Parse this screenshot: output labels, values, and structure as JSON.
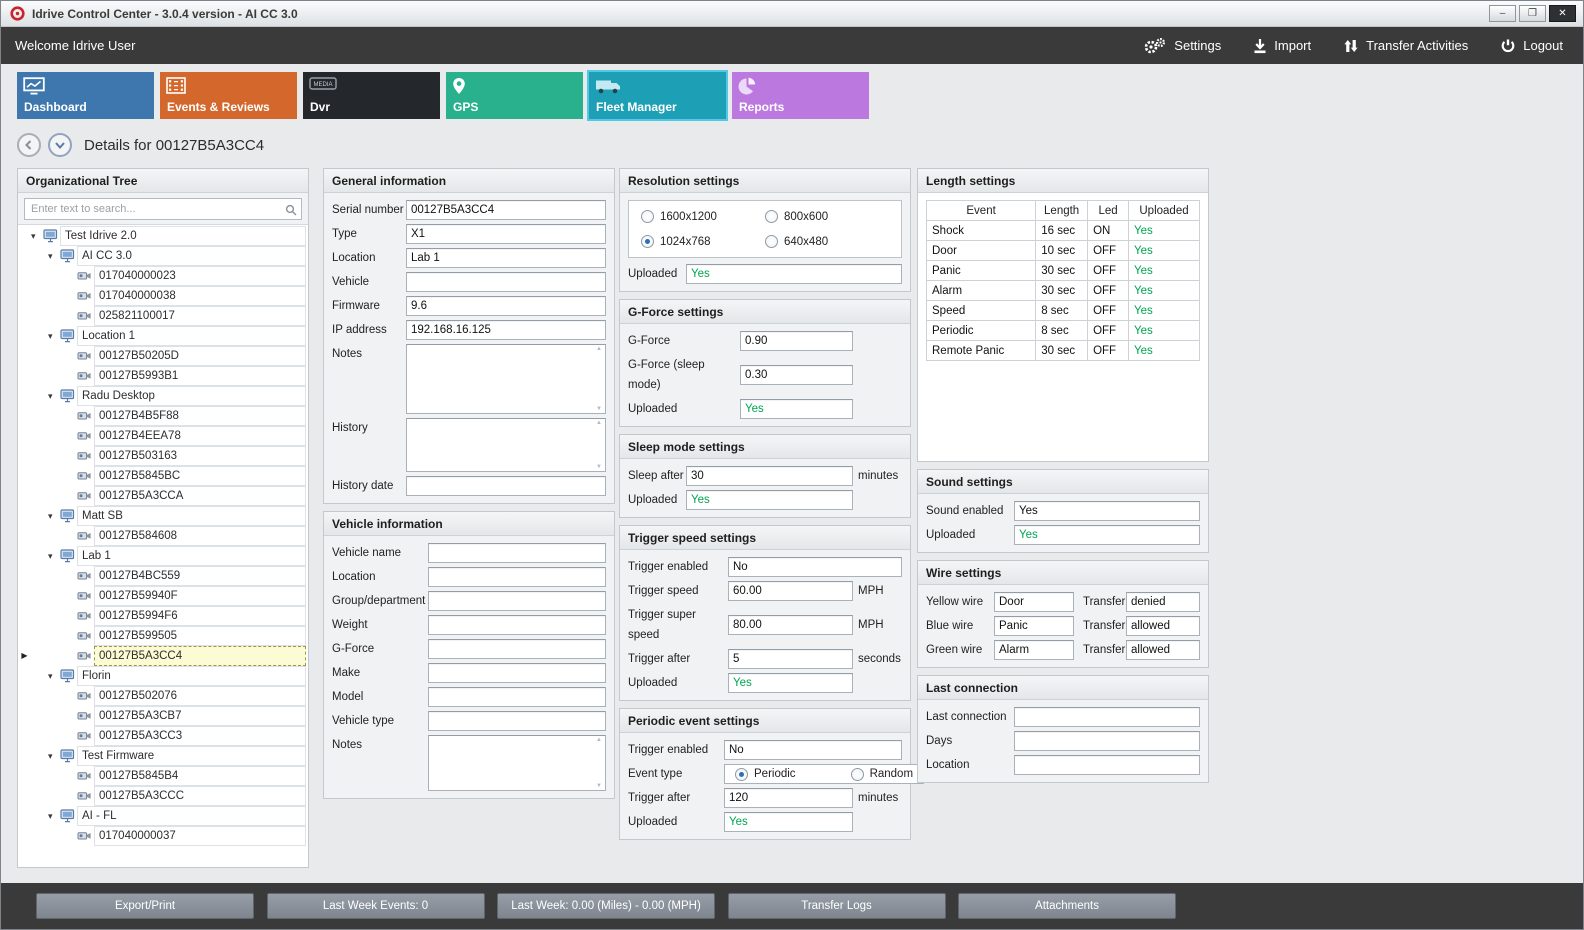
{
  "window": {
    "title": "Idrive Control Center - 3.0.4 version - AI CC 3.0",
    "controls": {
      "minimize": "–",
      "maximize": "❐",
      "close": "✕"
    }
  },
  "topbar": {
    "welcome": "Welcome Idrive User",
    "actions": [
      {
        "id": "settings",
        "label": "Settings",
        "icon": "gears-icon"
      },
      {
        "id": "import",
        "label": "Import",
        "icon": "import-icon"
      },
      {
        "id": "transfer-activities",
        "label": "Transfer Activities",
        "icon": "transfer-arrows-icon"
      },
      {
        "id": "logout",
        "label": "Logout",
        "icon": "power-icon"
      }
    ]
  },
  "tabs": [
    {
      "id": "dashboard",
      "label": "Dashboard",
      "color": "#3d77ae",
      "icon": "chart-monitor-icon",
      "selected": false
    },
    {
      "id": "events-reviews",
      "label": "Events & Reviews",
      "color": "#d4682c",
      "icon": "film-icon",
      "selected": false
    },
    {
      "id": "dvr",
      "label": "Dvr",
      "color": "#24272c",
      "icon": "media-box-icon",
      "selected": false
    },
    {
      "id": "gps",
      "label": "GPS",
      "color": "#29b08c",
      "icon": "location-pin-icon",
      "selected": false
    },
    {
      "id": "fleet-manager",
      "label": "Fleet Manager",
      "color": "#1d9fb5",
      "icon": "truck-icon",
      "selected": true
    },
    {
      "id": "reports",
      "label": "Reports",
      "color": "#bb79e0",
      "icon": "pie-chart-icon",
      "selected": false
    }
  ],
  "details": {
    "title": "Details for 00127B5A3CC4"
  },
  "tree": {
    "title": "Organizational Tree",
    "search_placeholder": "Enter text to search...",
    "nodes": [
      {
        "label": "Test Idrive 2.0",
        "level": 0,
        "type": "group",
        "expanded": true
      },
      {
        "label": "AI CC 3.0",
        "level": 1,
        "type": "group",
        "expanded": true
      },
      {
        "label": "017040000023",
        "level": 2,
        "type": "device"
      },
      {
        "label": "017040000038",
        "level": 2,
        "type": "device"
      },
      {
        "label": "025821100017",
        "level": 2,
        "type": "device"
      },
      {
        "label": "Location 1",
        "level": 1,
        "type": "group",
        "expanded": true
      },
      {
        "label": "00127B50205D",
        "level": 2,
        "type": "device"
      },
      {
        "label": "00127B5993B1",
        "level": 2,
        "type": "device"
      },
      {
        "label": "Radu Desktop",
        "level": 1,
        "type": "group",
        "expanded": true
      },
      {
        "label": "00127B4B5F88",
        "level": 2,
        "type": "device"
      },
      {
        "label": "00127B4EEA78",
        "level": 2,
        "type": "device"
      },
      {
        "label": "00127B503163",
        "level": 2,
        "type": "device"
      },
      {
        "label": "00127B5845BC",
        "level": 2,
        "type": "device"
      },
      {
        "label": "00127B5A3CCA",
        "level": 2,
        "type": "device"
      },
      {
        "label": "Matt SB",
        "level": 1,
        "type": "group",
        "expanded": true
      },
      {
        "label": "00127B584608",
        "level": 2,
        "type": "device"
      },
      {
        "label": "Lab 1",
        "level": 1,
        "type": "group",
        "expanded": true
      },
      {
        "label": "00127B4BC559",
        "level": 2,
        "type": "device"
      },
      {
        "label": "00127B59940F",
        "level": 2,
        "type": "device"
      },
      {
        "label": "00127B5994F6",
        "level": 2,
        "type": "device"
      },
      {
        "label": "00127B599505",
        "level": 2,
        "type": "device"
      },
      {
        "label": "00127B5A3CC4",
        "level": 2,
        "type": "device",
        "selected": true
      },
      {
        "label": "Florin",
        "level": 1,
        "type": "group",
        "expanded": true
      },
      {
        "label": "00127B502076",
        "level": 2,
        "type": "device"
      },
      {
        "label": "00127B5A3CB7",
        "level": 2,
        "type": "device"
      },
      {
        "label": "00127B5A3CC3",
        "level": 2,
        "type": "device"
      },
      {
        "label": "Test Firmware",
        "level": 1,
        "type": "group",
        "expanded": true
      },
      {
        "label": "00127B5845B4",
        "level": 2,
        "type": "device"
      },
      {
        "label": "00127B5A3CCC",
        "level": 2,
        "type": "device"
      },
      {
        "label": "AI - FL",
        "level": 1,
        "type": "group",
        "expanded": true
      },
      {
        "label": "017040000037",
        "level": 2,
        "type": "device"
      }
    ]
  },
  "general_info": {
    "title": "General information",
    "fields": [
      {
        "label": "Serial number",
        "value": "00127B5A3CC4",
        "kind": "input"
      },
      {
        "label": "Type",
        "value": "X1",
        "kind": "input"
      },
      {
        "label": "Location",
        "value": "Lab 1",
        "kind": "input"
      },
      {
        "label": "Vehicle",
        "value": "",
        "kind": "input"
      },
      {
        "label": "Firmware",
        "value": "9.6",
        "kind": "input"
      },
      {
        "label": "IP address",
        "value": "192.168.16.125",
        "kind": "input"
      },
      {
        "label": "Notes",
        "value": "",
        "kind": "textarea"
      },
      {
        "label": "History",
        "value": "",
        "kind": "textarea"
      },
      {
        "label": "History date",
        "value": "",
        "kind": "input"
      }
    ]
  },
  "vehicle_info": {
    "title": "Vehicle information",
    "fields": [
      {
        "label": "Vehicle name",
        "value": "",
        "kind": "input"
      },
      {
        "label": "Location",
        "value": "",
        "kind": "input"
      },
      {
        "label": "Group/department",
        "value": "",
        "kind": "input"
      },
      {
        "label": "Weight",
        "value": "",
        "kind": "input"
      },
      {
        "label": "G-Force",
        "value": "",
        "kind": "input"
      },
      {
        "label": "Make",
        "value": "",
        "kind": "input"
      },
      {
        "label": "Model",
        "value": "",
        "kind": "input"
      },
      {
        "label": "Vehicle type",
        "value": "",
        "kind": "input"
      },
      {
        "label": "Notes",
        "value": "",
        "kind": "textarea"
      }
    ]
  },
  "resolution_settings": {
    "title": "Resolution settings",
    "options": [
      {
        "label": "1600x1200",
        "selected": false
      },
      {
        "label": "800x600",
        "selected": false
      },
      {
        "label": "1024x768",
        "selected": true
      },
      {
        "label": "640x480",
        "selected": false
      }
    ],
    "uploaded_label": "Uploaded",
    "uploaded_value": "Yes"
  },
  "gforce_settings": {
    "title": "G-Force settings",
    "fields": [
      {
        "label": "G-Force",
        "value": "0.90",
        "kind": "input"
      },
      {
        "label": "G-Force (sleep mode)",
        "value": "0.30",
        "kind": "input"
      },
      {
        "label": "Uploaded",
        "value": "Yes",
        "kind": "uploaded"
      }
    ]
  },
  "sleep_settings": {
    "title": "Sleep mode settings",
    "fields": [
      {
        "label": "Sleep after",
        "value": "30",
        "suffix": "minutes",
        "kind": "input"
      },
      {
        "label": "Uploaded",
        "value": "Yes",
        "kind": "uploaded"
      }
    ]
  },
  "trigger_speed_settings": {
    "title": "Trigger speed settings",
    "fields": [
      {
        "label": "Trigger enabled",
        "value": "No",
        "kind": "input"
      },
      {
        "label": "Trigger speed",
        "value": "60.00",
        "suffix": "MPH",
        "kind": "input"
      },
      {
        "label": "Trigger super speed",
        "value": "80.00",
        "suffix": "MPH",
        "kind": "input"
      },
      {
        "label": "Trigger after",
        "value": "5",
        "suffix": "seconds",
        "kind": "input"
      },
      {
        "label": "Uploaded",
        "value": "Yes",
        "kind": "uploaded"
      }
    ]
  },
  "periodic_settings": {
    "title": "Periodic event settings",
    "trigger_enabled": {
      "label": "Trigger enabled",
      "value": "No"
    },
    "event_type": {
      "label": "Event type",
      "options": [
        {
          "label": "Periodic",
          "selected": true
        },
        {
          "label": "Random",
          "selected": false
        }
      ]
    },
    "trigger_after": {
      "label": "Trigger after",
      "value": "120",
      "suffix": "minutes"
    },
    "uploaded": {
      "label": "Uploaded",
      "value": "Yes"
    }
  },
  "length_settings": {
    "title": "Length settings",
    "columns": [
      "Event",
      "Length",
      "Led",
      "Uploaded"
    ],
    "rows": [
      [
        "Shock",
        "16 sec",
        "ON",
        "Yes"
      ],
      [
        "Door",
        "10 sec",
        "OFF",
        "Yes"
      ],
      [
        "Panic",
        "30 sec",
        "OFF",
        "Yes"
      ],
      [
        "Alarm",
        "30 sec",
        "OFF",
        "Yes"
      ],
      [
        "Speed",
        "8 sec",
        "OFF",
        "Yes"
      ],
      [
        "Periodic",
        "8 sec",
        "OFF",
        "Yes"
      ],
      [
        "Remote Panic",
        "30 sec",
        "OFF",
        "Yes"
      ]
    ]
  },
  "sound_settings": {
    "title": "Sound settings",
    "fields": [
      {
        "label": "Sound enabled",
        "value": "Yes",
        "kind": "input"
      },
      {
        "label": "Uploaded",
        "value": "Yes",
        "kind": "uploaded"
      }
    ]
  },
  "wire_settings": {
    "title": "Wire settings",
    "rows": [
      {
        "label": "Yellow wire",
        "value": "Door",
        "transfer_label": "Transfer",
        "transfer": "denied"
      },
      {
        "label": "Blue wire",
        "value": "Panic",
        "transfer_label": "Transfer",
        "transfer": "allowed"
      },
      {
        "label": "Green wire",
        "value": "Alarm",
        "transfer_label": "Transfer",
        "transfer": "allowed"
      }
    ]
  },
  "last_connection": {
    "title": "Last connection",
    "fields": [
      {
        "label": "Last connection",
        "value": "",
        "kind": "input"
      },
      {
        "label": "Days",
        "value": "",
        "kind": "input"
      },
      {
        "label": "Location",
        "value": "",
        "kind": "input"
      }
    ]
  },
  "bottombar": {
    "buttons": [
      {
        "id": "export-print",
        "label": "Export/Print"
      },
      {
        "id": "last-week-events",
        "label": "Last Week Events: 0"
      },
      {
        "id": "last-week-miles",
        "label": "Last Week: 0.00 (Miles) - 0.00 (MPH)"
      },
      {
        "id": "transfer-logs",
        "label": "Transfer Logs"
      },
      {
        "id": "attachments",
        "label": "Attachments"
      }
    ]
  },
  "colors": {
    "accent_green": "#00a551",
    "selected_tab_border": "#55c7e6",
    "topbar_bg": "#3a3a3a"
  }
}
